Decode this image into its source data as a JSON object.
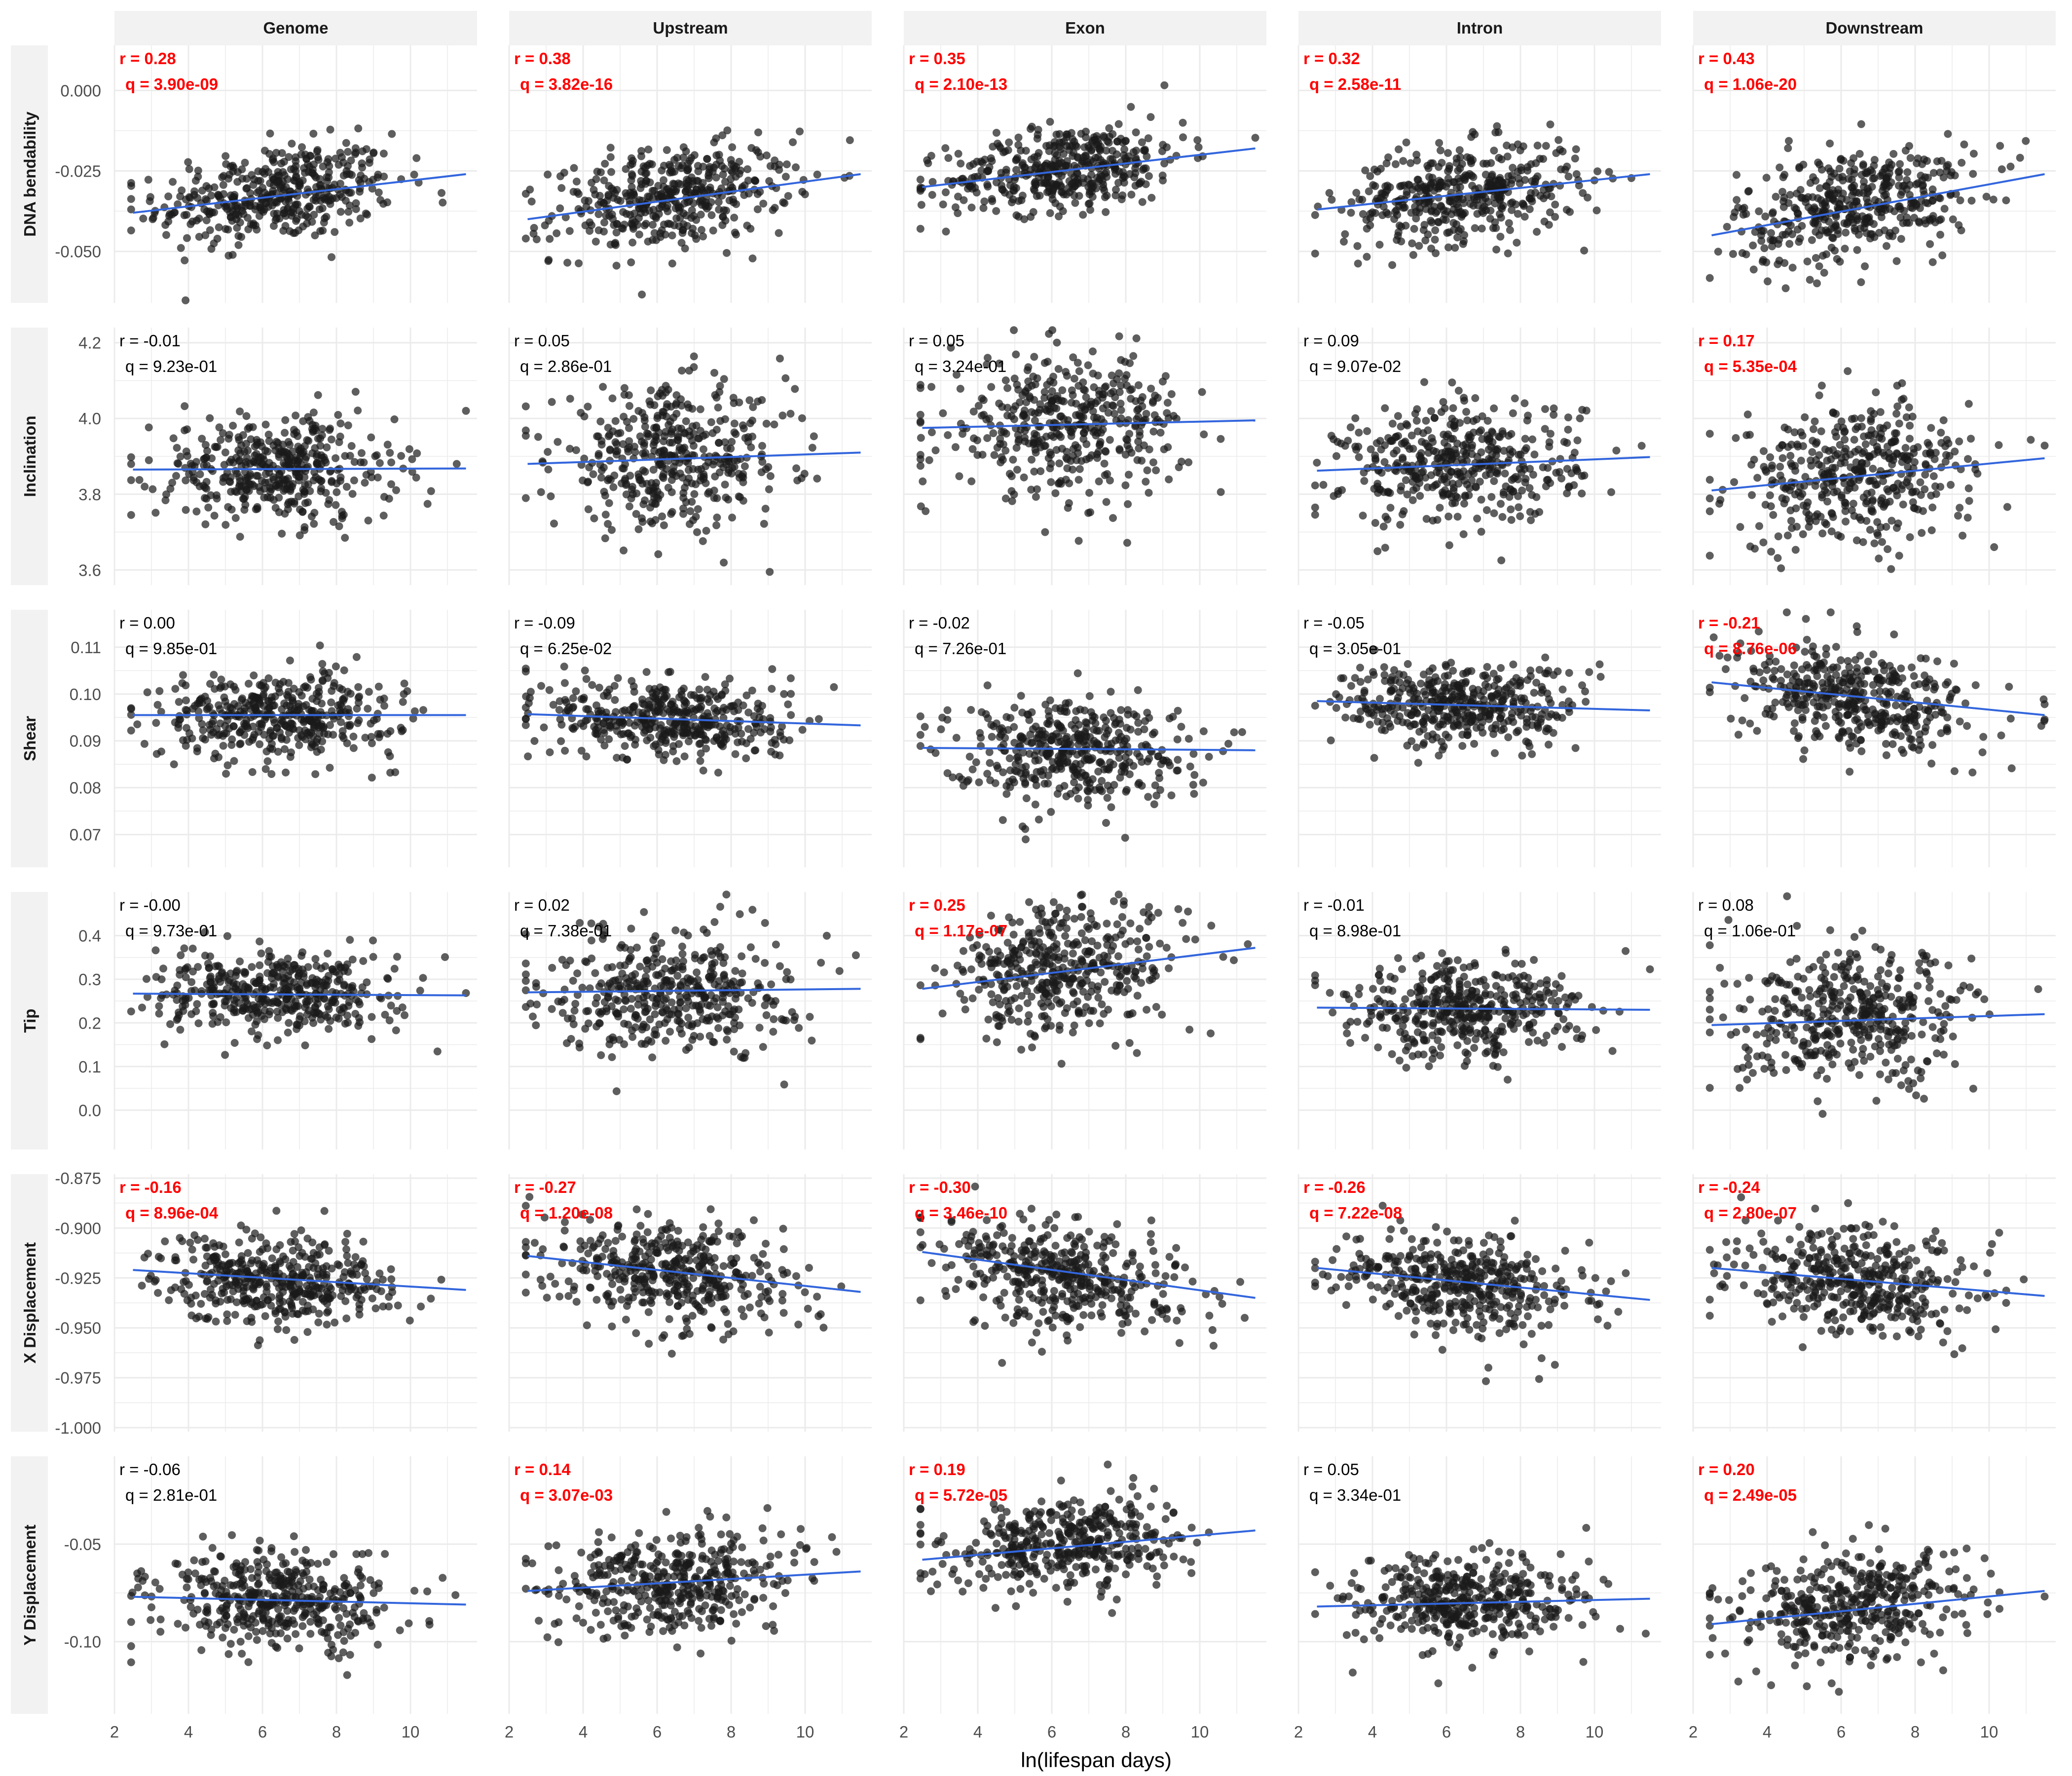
{
  "chart_data": {
    "type": "scatter",
    "xlabel": "ln(lifespan days)",
    "xlim": [
      2,
      11.8
    ],
    "xticks": [
      2,
      4,
      6,
      8,
      10
    ],
    "colors": {
      "points": "#1a1a1a",
      "fit_line": "#3366dd",
      "significant": "#ff0000",
      "normal": "#000000",
      "strip": "#f2f2f2",
      "grid": "#ebebeb"
    },
    "columns": [
      "Genome",
      "Upstream",
      "Exon",
      "Intron",
      "Downstream"
    ],
    "rows": [
      {
        "label": "DNA bendability",
        "ylim": [
          -0.066,
          0.014
        ],
        "yticks": [
          0.0,
          -0.025,
          -0.05
        ],
        "ytick_labels": [
          "0.000",
          "-0.025",
          "-0.050"
        ],
        "panels": [
          {
            "r": "r = 0.28",
            "q": "q = 3.90e-09",
            "significant": true,
            "fit": [
              [
                2.5,
                -0.038
              ],
              [
                11.5,
                -0.026
              ]
            ],
            "center": -0.032,
            "slope": 0.0013,
            "spread": 0.0075
          },
          {
            "r": "r = 0.38",
            "q": "q = 3.82e-16",
            "significant": true,
            "fit": [
              [
                2.5,
                -0.04
              ],
              [
                11.5,
                -0.026
              ]
            ],
            "center": -0.033,
            "slope": 0.0016,
            "spread": 0.0075
          },
          {
            "r": "r = 0.35",
            "q": "q = 2.10e-13",
            "significant": true,
            "fit": [
              [
                2.5,
                -0.03
              ],
              [
                11.5,
                -0.018
              ]
            ],
            "center": -0.024,
            "slope": 0.0013,
            "spread": 0.0065
          },
          {
            "r": "r = 0.32",
            "q": "q = 2.58e-11",
            "significant": true,
            "fit": [
              [
                2.5,
                -0.037
              ],
              [
                11.5,
                -0.026
              ]
            ],
            "center": -0.032,
            "slope": 0.0012,
            "spread": 0.0075
          },
          {
            "r": "r = 0.43",
            "q": "q = 1.06e-20",
            "significant": true,
            "fit": [
              [
                2.5,
                -0.045
              ],
              [
                11.5,
                -0.026
              ]
            ],
            "center": -0.035,
            "slope": 0.0021,
            "spread": 0.0085
          }
        ]
      },
      {
        "label": "Inclination",
        "ylim": [
          3.56,
          4.24
        ],
        "yticks": [
          4.2,
          4.0,
          3.8,
          3.6
        ],
        "ytick_labels": [
          "4.2",
          "4.0",
          "3.8",
          "3.6"
        ],
        "panels": [
          {
            "r": "r = -0.01",
            "q": "q = 9.23e-01",
            "significant": false,
            "fit": [
              [
                2.5,
                3.865
              ],
              [
                11.5,
                3.868
              ]
            ],
            "center": 3.866,
            "slope": 0.0003,
            "spread": 0.07
          },
          {
            "r": "r = 0.05",
            "q": "q = 2.86e-01",
            "significant": false,
            "fit": [
              [
                2.5,
                3.88
              ],
              [
                11.5,
                3.91
              ]
            ],
            "center": 3.895,
            "slope": 0.003,
            "spread": 0.09
          },
          {
            "r": "r = 0.05",
            "q": "q = 3.24e-01",
            "significant": false,
            "fit": [
              [
                2.5,
                3.975
              ],
              [
                11.5,
                3.995
              ]
            ],
            "center": 3.985,
            "slope": 0.002,
            "spread": 0.09
          },
          {
            "r": "r = 0.09",
            "q": "q = 9.07e-02",
            "significant": false,
            "fit": [
              [
                2.5,
                3.862
              ],
              [
                11.5,
                3.898
              ]
            ],
            "center": 3.88,
            "slope": 0.004,
            "spread": 0.08
          },
          {
            "r": "r = 0.17",
            "q": "q = 5.35e-04",
            "significant": true,
            "fit": [
              [
                2.5,
                3.81
              ],
              [
                11.5,
                3.895
              ]
            ],
            "center": 3.852,
            "slope": 0.009,
            "spread": 0.09
          }
        ]
      },
      {
        "label": "Shear",
        "ylim": [
          0.063,
          0.118
        ],
        "yticks": [
          0.11,
          0.1,
          0.09,
          0.08,
          0.07
        ],
        "ytick_labels": [
          "0.11",
          "0.10",
          "0.09",
          "0.08",
          "0.07"
        ],
        "panels": [
          {
            "r": "r = 0.00",
            "q": "q = 9.85e-01",
            "significant": false,
            "fit": [
              [
                2.5,
                0.0955
              ],
              [
                11.5,
                0.0955
              ]
            ],
            "center": 0.0955,
            "slope": 0.0,
            "spread": 0.0045
          },
          {
            "r": "r = -0.09",
            "q": "q = 6.25e-02",
            "significant": false,
            "fit": [
              [
                2.5,
                0.0957
              ],
              [
                11.5,
                0.0933
              ]
            ],
            "center": 0.0945,
            "slope": -0.0003,
            "spread": 0.0045
          },
          {
            "r": "r = -0.02",
            "q": "q = 7.26e-01",
            "significant": false,
            "fit": [
              [
                2.5,
                0.0885
              ],
              [
                11.5,
                0.088
              ]
            ],
            "center": 0.0883,
            "slope": -0.0001,
            "spread": 0.0055
          },
          {
            "r": "r = -0.05",
            "q": "q = 3.05e-01",
            "significant": false,
            "fit": [
              [
                2.5,
                0.0985
              ],
              [
                11.5,
                0.0965
              ]
            ],
            "center": 0.0975,
            "slope": -0.0002,
            "spread": 0.0045
          },
          {
            "r": "r = -0.21",
            "q": "q = 8.76e-06",
            "significant": true,
            "fit": [
              [
                2.5,
                0.1025
              ],
              [
                11.5,
                0.0955
              ]
            ],
            "center": 0.099,
            "slope": -0.0008,
            "spread": 0.0055
          }
        ]
      },
      {
        "label": "Tip",
        "ylim": [
          -0.09,
          0.5
        ],
        "yticks": [
          0.4,
          0.3,
          0.2,
          0.1,
          0.0
        ],
        "ytick_labels": [
          "0.4",
          "0.3",
          "0.2",
          "0.1",
          "0.0"
        ],
        "panels": [
          {
            "r": "r = -0.00",
            "q": "q = 9.73e-01",
            "significant": false,
            "fit": [
              [
                2.5,
                0.267
              ],
              [
                11.5,
                0.263
              ]
            ],
            "center": 0.265,
            "slope": -0.0004,
            "spread": 0.045
          },
          {
            "r": "r = 0.02",
            "q": "q = 7.38e-01",
            "significant": false,
            "fit": [
              [
                2.5,
                0.27
              ],
              [
                11.5,
                0.278
              ]
            ],
            "center": 0.274,
            "slope": 0.0009,
            "spread": 0.07
          },
          {
            "r": "r = 0.25",
            "q": "q = 1.17e-07",
            "significant": true,
            "fit": [
              [
                2.5,
                0.278
              ],
              [
                11.5,
                0.372
              ]
            ],
            "center": 0.325,
            "slope": 0.0104,
            "spread": 0.075
          },
          {
            "r": "r = -0.01",
            "q": "q = 8.98e-01",
            "significant": false,
            "fit": [
              [
                2.5,
                0.235
              ],
              [
                11.5,
                0.23
              ]
            ],
            "center": 0.232,
            "slope": -0.0006,
            "spread": 0.055
          },
          {
            "r": "r = 0.08",
            "q": "q = 1.06e-01",
            "significant": false,
            "fit": [
              [
                2.5,
                0.195
              ],
              [
                11.5,
                0.22
              ]
            ],
            "center": 0.207,
            "slope": 0.0028,
            "spread": 0.075
          }
        ]
      },
      {
        "label": "X Displacement",
        "ylim": [
          -1.002,
          -0.873
        ],
        "yticks": [
          -0.875,
          -0.9,
          -0.925,
          -0.95,
          -0.975,
          -1.0
        ],
        "ytick_labels": [
          "-0.875",
          "-0.900",
          "-0.925",
          "-0.950",
          "-0.975",
          "-1.000"
        ],
        "panels": [
          {
            "r": "r = -0.16",
            "q": "q = 8.96e-04",
            "significant": true,
            "fit": [
              [
                2.5,
                -0.921
              ],
              [
                11.5,
                -0.931
              ]
            ],
            "center": -0.926,
            "slope": -0.0011,
            "spread": 0.011
          },
          {
            "r": "r = -0.27",
            "q": "q = 1.20e-08",
            "significant": true,
            "fit": [
              [
                2.5,
                -0.914
              ],
              [
                11.5,
                -0.932
              ]
            ],
            "center": -0.923,
            "slope": -0.002,
            "spread": 0.013
          },
          {
            "r": "r = -0.30",
            "q": "q = 3.46e-10",
            "significant": true,
            "fit": [
              [
                2.5,
                -0.912
              ],
              [
                11.5,
                -0.935
              ]
            ],
            "center": -0.924,
            "slope": -0.0026,
            "spread": 0.013
          },
          {
            "r": "r = -0.26",
            "q": "q = 7.22e-08",
            "significant": true,
            "fit": [
              [
                2.5,
                -0.92
              ],
              [
                11.5,
                -0.936
              ]
            ],
            "center": -0.928,
            "slope": -0.0018,
            "spread": 0.012
          },
          {
            "r": "r = -0.24",
            "q": "q = 2.80e-07",
            "significant": true,
            "fit": [
              [
                2.5,
                -0.92
              ],
              [
                11.5,
                -0.934
              ]
            ],
            "center": -0.927,
            "slope": -0.0016,
            "spread": 0.013
          }
        ]
      },
      {
        "label": "Y Displacement",
        "ylim": [
          -0.137,
          -0.005
        ],
        "yticks": [
          -0.05,
          -0.1
        ],
        "ytick_labels": [
          "-0.05",
          "-0.10"
        ],
        "panels": [
          {
            "r": "r = -0.06",
            "q": "q = 2.81e-01",
            "significant": false,
            "fit": [
              [
                2.5,
                -0.077
              ],
              [
                11.5,
                -0.081
              ]
            ],
            "center": -0.079,
            "slope": -0.0004,
            "spread": 0.012
          },
          {
            "r": "r = 0.14",
            "q": "q = 3.07e-03",
            "significant": true,
            "fit": [
              [
                2.5,
                -0.074
              ],
              [
                11.5,
                -0.064
              ]
            ],
            "center": -0.069,
            "slope": 0.0011,
            "spread": 0.013
          },
          {
            "r": "r = 0.19",
            "q": "q = 5.72e-05",
            "significant": true,
            "fit": [
              [
                2.5,
                -0.058
              ],
              [
                11.5,
                -0.043
              ]
            ],
            "center": -0.05,
            "slope": 0.0017,
            "spread": 0.012
          },
          {
            "r": "r = 0.05",
            "q": "q = 3.34e-01",
            "significant": false,
            "fit": [
              [
                2.5,
                -0.082
              ],
              [
                11.5,
                -0.078
              ]
            ],
            "center": -0.08,
            "slope": 0.0004,
            "spread": 0.012
          },
          {
            "r": "r = 0.20",
            "q": "q = 2.49e-05",
            "significant": true,
            "fit": [
              [
                2.5,
                -0.091
              ],
              [
                11.5,
                -0.074
              ]
            ],
            "center": -0.082,
            "slope": 0.0019,
            "spread": 0.014
          }
        ]
      }
    ]
  }
}
